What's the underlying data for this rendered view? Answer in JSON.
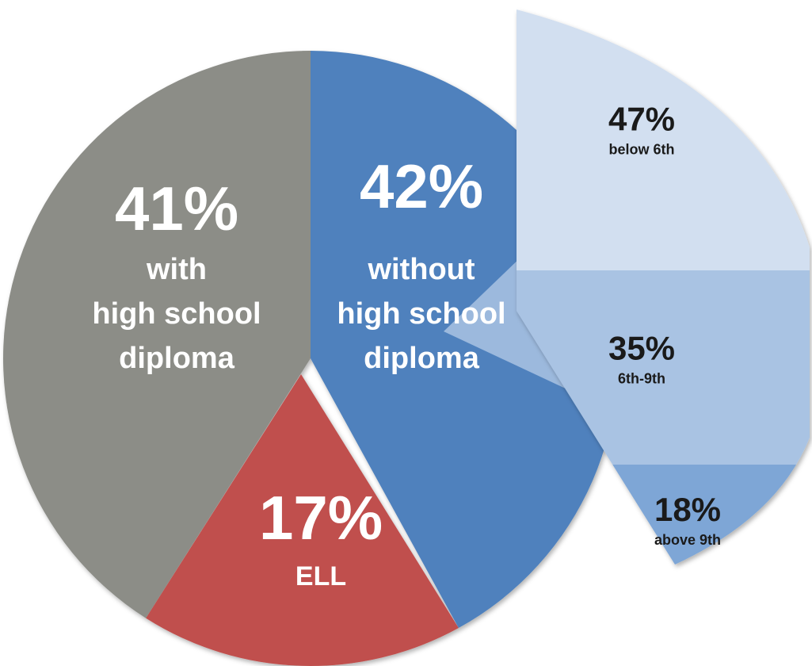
{
  "chart_data": {
    "type": "pie",
    "slices": [
      {
        "name": "without high school diploma",
        "value": 42,
        "value_label": "42%",
        "text_lines": [
          "without",
          "high school",
          "diploma"
        ],
        "color": "#4f81bd",
        "text_color": "#ffffff"
      },
      {
        "name": "ELL",
        "value": 17,
        "value_label": "17%",
        "text_lines": [
          "ELL"
        ],
        "color": "#c0504d",
        "text_color": "#ffffff"
      },
      {
        "name": "with high school diploma",
        "value": 41,
        "value_label": "41%",
        "text_lines": [
          "with",
          "high school",
          "diploma"
        ],
        "color": "#8c8d87",
        "text_color": "#ffffff"
      }
    ],
    "breakdown": {
      "of_slice": "without high school diploma",
      "type": "stacked-bar",
      "segments": [
        {
          "value": 47,
          "value_label": "47%",
          "label": "below 6th",
          "color": "#d2dff0",
          "text_color": "#1a1a1a"
        },
        {
          "value": 35,
          "value_label": "35%",
          "label": "6th-9th",
          "color": "#a9c3e3",
          "text_color": "#1a1a1a"
        },
        {
          "value": 18,
          "value_label": "18%",
          "label": "above 9th",
          "color": "#7ea6d6",
          "text_color": "#1a1a1a"
        }
      ]
    }
  }
}
